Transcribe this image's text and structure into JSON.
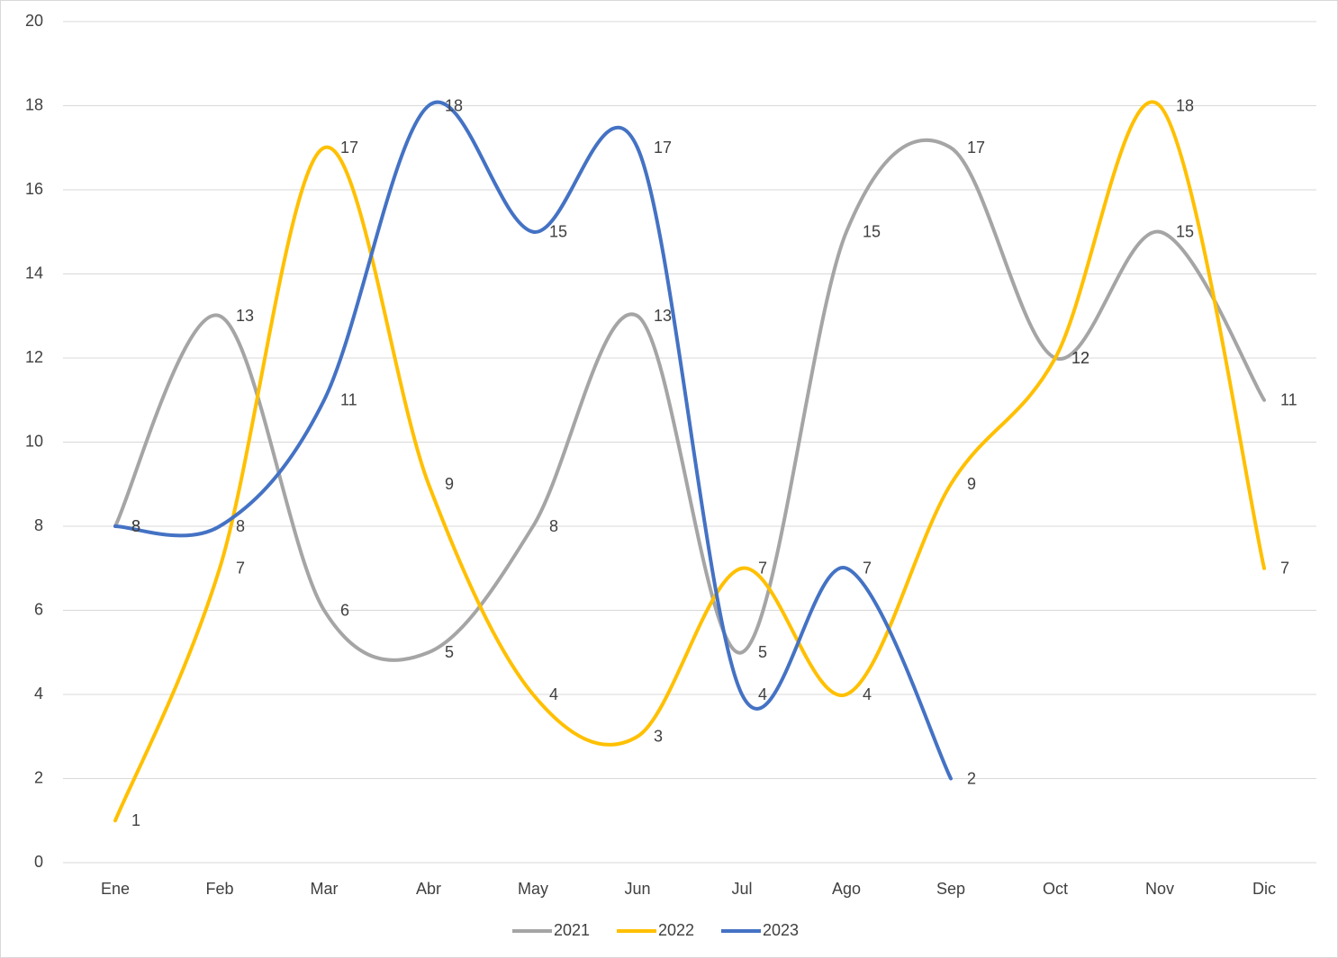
{
  "chart_data": {
    "type": "line",
    "smooth": true,
    "categories": [
      "Ene",
      "Feb",
      "Mar",
      "Abr",
      "May",
      "Jun",
      "Jul",
      "Ago",
      "Sep",
      "Oct",
      "Nov",
      "Dic"
    ],
    "series": [
      {
        "name": "2021",
        "color": "#a5a5a5",
        "values": [
          8,
          13,
          6,
          5,
          8,
          13,
          5,
          15,
          17,
          12,
          15,
          11
        ]
      },
      {
        "name": "2022",
        "color": "#ffc000",
        "values": [
          1,
          7,
          17,
          9,
          4,
          3,
          7,
          4,
          9,
          12,
          18,
          7
        ]
      },
      {
        "name": "2023",
        "color": "#4472c4",
        "values": [
          8,
          8,
          11,
          18,
          15,
          17,
          4,
          7,
          2,
          null,
          null,
          null
        ]
      }
    ],
    "ylim": [
      0,
      20
    ],
    "yticks": [
      0,
      2,
      4,
      6,
      8,
      10,
      12,
      14,
      16,
      18,
      20
    ],
    "grid": true,
    "legend": "bottom",
    "data_labels": true
  }
}
